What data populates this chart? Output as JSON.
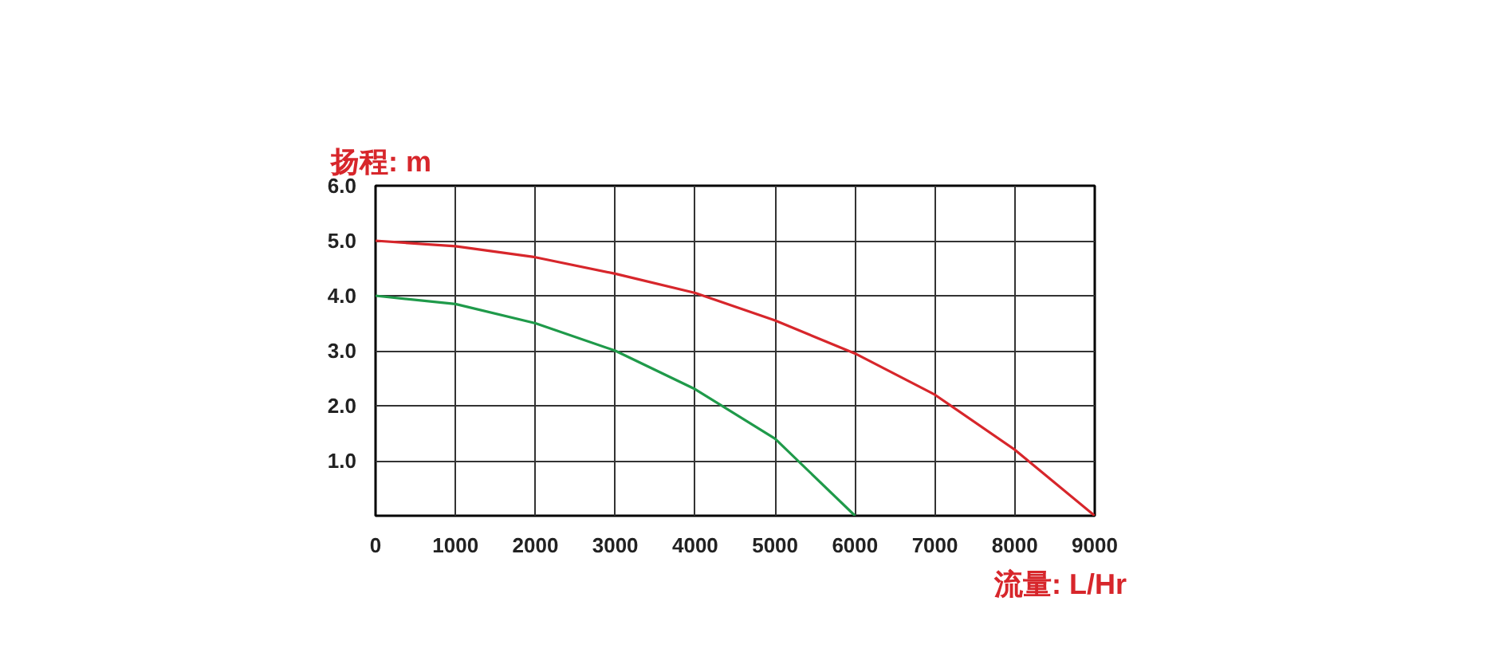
{
  "chart_data": {
    "type": "line",
    "ylabel": "扬程: m",
    "xlabel": "流量: L/Hr",
    "xlim": [
      0,
      9000
    ],
    "ylim": [
      0,
      6
    ],
    "xticks": [
      {
        "value": 0,
        "label": "0"
      },
      1000,
      2000,
      3000,
      4000,
      5000,
      6000,
      7000,
      8000,
      9000
    ],
    "yticks": [
      {
        "value": 0,
        "label": null
      },
      {
        "value": 1,
        "label": "1.0"
      },
      {
        "value": 2,
        "label": "2.0"
      },
      {
        "value": 3,
        "label": "3.0"
      },
      {
        "value": 4,
        "label": "4.0"
      },
      {
        "value": 5,
        "label": "5.0"
      },
      {
        "value": 6,
        "label": "6.0"
      }
    ],
    "grid": true,
    "marker": "none",
    "line_style": "solid",
    "series": [
      {
        "color": "#d7262b",
        "x": [
          0,
          1000,
          2000,
          3000,
          4000,
          5000,
          6000,
          7000,
          8000,
          9000
        ],
        "values": [
          5.0,
          4.9,
          4.7,
          4.4,
          4.05,
          3.55,
          2.95,
          2.2,
          1.2,
          0
        ]
      },
      {
        "color": "#1f9a4a",
        "x": [
          0,
          1000,
          2000,
          3000,
          4000,
          5000,
          6000
        ],
        "values": [
          4.0,
          3.85,
          3.5,
          3.0,
          2.3,
          1.4,
          0
        ]
      }
    ]
  }
}
